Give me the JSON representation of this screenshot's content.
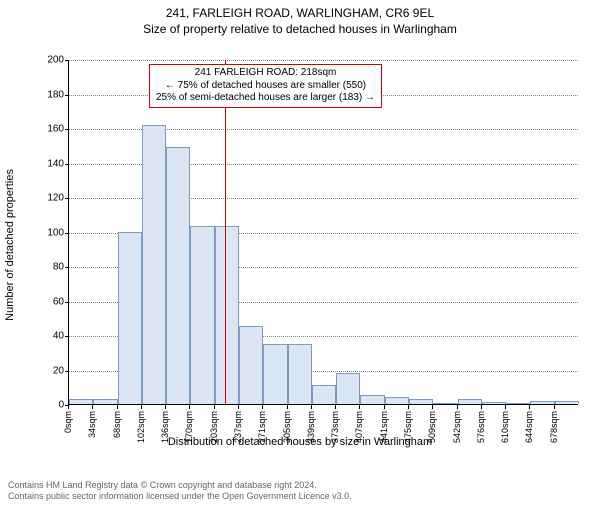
{
  "header": {
    "address": "241, FARLEIGH ROAD, WARLINGHAM, CR6 9EL",
    "subtitle": "Size of property relative to detached houses in Warlingham"
  },
  "chart": {
    "type": "histogram",
    "ylabel": "Number of detached properties",
    "xlabel": "Distribution of detached houses by size in Warlingham",
    "ylim": [
      0,
      200
    ],
    "ytick_step": 20,
    "xtick_unit": "sqm",
    "bar_fill": "#dbe5f4",
    "bar_stroke": "#7f9bc4",
    "grid_color": "#888888",
    "background": "#ffffff",
    "marker_color": "#cc0000",
    "marker_x_sqm": 218,
    "bins": [
      {
        "x": 0,
        "count": 3
      },
      {
        "x": 34,
        "count": 3
      },
      {
        "x": 68,
        "count": 100
      },
      {
        "x": 102,
        "count": 162
      },
      {
        "x": 136,
        "count": 149
      },
      {
        "x": 170,
        "count": 103
      },
      {
        "x": 203,
        "count": 103
      },
      {
        "x": 237,
        "count": 45
      },
      {
        "x": 271,
        "count": 35
      },
      {
        "x": 305,
        "count": 35
      },
      {
        "x": 339,
        "count": 11
      },
      {
        "x": 373,
        "count": 18
      },
      {
        "x": 407,
        "count": 5
      },
      {
        "x": 441,
        "count": 4
      },
      {
        "x": 475,
        "count": 3
      },
      {
        "x": 509,
        "count": 0
      },
      {
        "x": 542,
        "count": 3
      },
      {
        "x": 576,
        "count": 1
      },
      {
        "x": 610,
        "count": 0
      },
      {
        "x": 644,
        "count": 2
      },
      {
        "x": 678,
        "count": 2
      }
    ],
    "callout": {
      "line1": "241 FARLEIGH ROAD: 218sqm",
      "line2": "← 75% of detached houses are smaller (550)",
      "line3": "25% of semi-detached houses are larger (183) →"
    }
  },
  "footer": {
    "line1": "Contains HM Land Registry data © Crown copyright and database right 2024.",
    "line2": "Contains public sector information licensed under the Open Government Licence v3.0."
  }
}
